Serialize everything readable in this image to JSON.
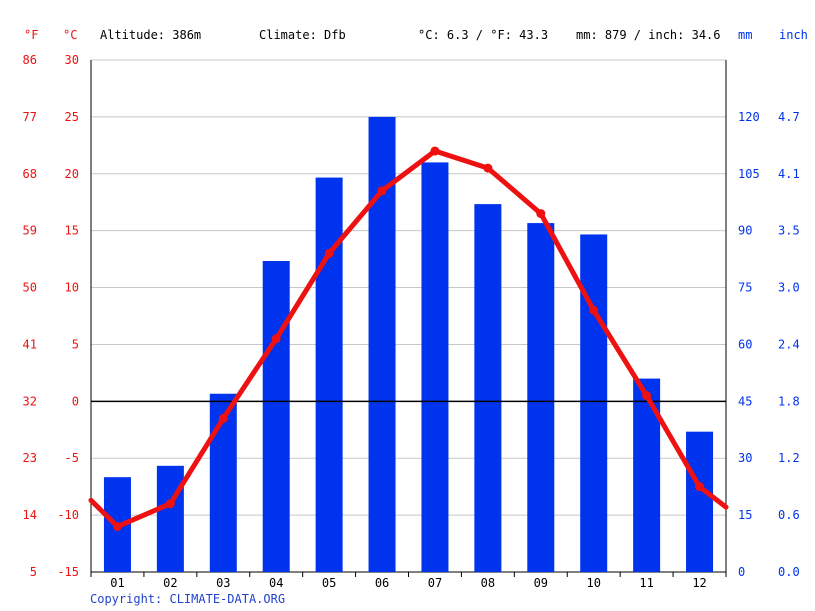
{
  "header": {
    "unit_f": "°F",
    "unit_c": "°C",
    "altitude": "Altitude: 386m",
    "climate": "Climate: Dfb",
    "temp_avg": "°C: 6.3 / °F: 43.3",
    "precip_avg": "mm: 879 / inch: 34.6",
    "unit_mm": "mm",
    "unit_inch": "inch"
  },
  "copyright": "Copyright: CLIMATE-DATA.ORG",
  "colors": {
    "temperature": "#ee1111",
    "precipitation": "#0033ee",
    "grid": "#c8c8c8",
    "zero_line": "#000000",
    "copyright": "#2244cc"
  },
  "chart_data": {
    "type": "bar",
    "categories": [
      "01",
      "02",
      "03",
      "04",
      "05",
      "06",
      "07",
      "08",
      "09",
      "10",
      "11",
      "12"
    ],
    "series": [
      {
        "type": "bar",
        "axis": "right",
        "unit": "mm",
        "values": [
          25,
          28,
          47,
          82,
          104,
          120,
          108,
          97,
          92,
          89,
          51,
          37
        ]
      },
      {
        "type": "line",
        "axis": "left",
        "unit": "°C",
        "values": [
          -11,
          -9,
          -1.5,
          5.5,
          13,
          18.5,
          22,
          20.5,
          16.5,
          8,
          0.5,
          -7.5
        ],
        "edge_values": {
          "start": -8.7,
          "end": -9.3
        }
      }
    ],
    "left_axis_c": {
      "ticks": [
        30,
        25,
        20,
        15,
        10,
        5,
        0,
        -5,
        -10,
        -15
      ],
      "range": [
        -15,
        30
      ]
    },
    "left_axis_f": {
      "ticks": [
        86,
        77,
        68,
        59,
        50,
        41,
        32,
        23,
        14,
        5
      ]
    },
    "right_axis_mm": {
      "ticks": [
        120,
        105,
        90,
        75,
        60,
        45,
        30,
        15,
        0
      ],
      "range": [
        0,
        135
      ]
    },
    "right_axis_inch": {
      "ticks": [
        "4.7",
        "4.1",
        "3.5",
        "3.0",
        "2.4",
        "1.8",
        "1.2",
        "0.6",
        "0.0"
      ]
    },
    "grid": true
  }
}
